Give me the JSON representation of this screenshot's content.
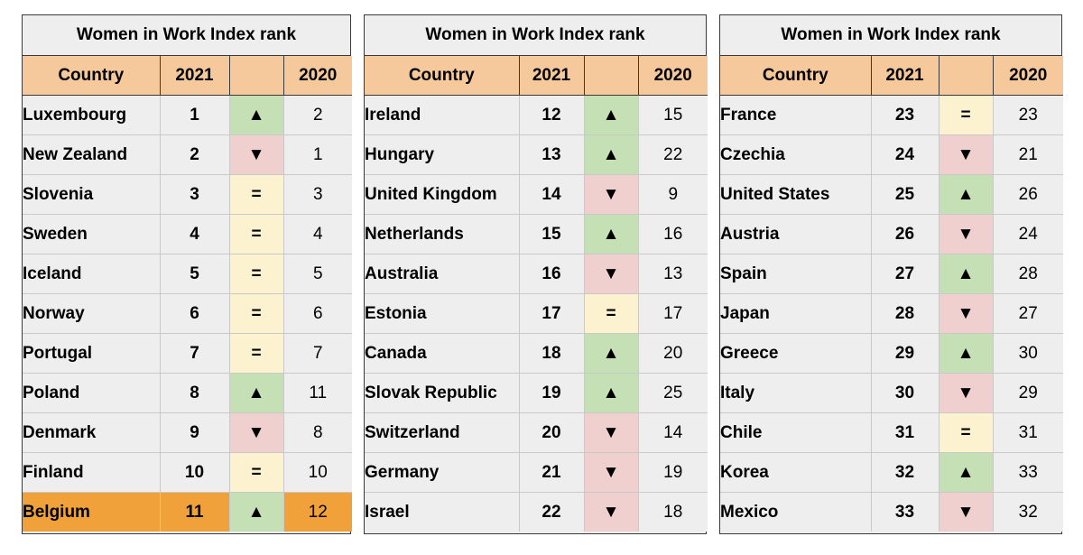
{
  "colors": {
    "header_bg": "#f6c99c",
    "up": "#c5e0b4",
    "down": "#f0cfcf",
    "same": "#fdf2d0",
    "highlight": "#f0a13a"
  },
  "symbols": {
    "up": "▲",
    "down": "▼",
    "same": "="
  },
  "chart_data": {
    "type": "table",
    "title": "Women in Work Index rank",
    "columns": [
      "Country",
      "2021",
      "",
      "2020"
    ],
    "highlighted_country": "Belgium",
    "panels": [
      {
        "title": "Women in Work Index rank",
        "headers": {
          "country": "Country",
          "y2021": "2021",
          "change": "",
          "y2020": "2020"
        },
        "rows": [
          {
            "country": "Luxembourg",
            "y2021": "1",
            "y2020": "2",
            "change": "up"
          },
          {
            "country": "New Zealand",
            "y2021": "2",
            "y2020": "1",
            "change": "down"
          },
          {
            "country": "Slovenia",
            "y2021": "3",
            "y2020": "3",
            "change": "same"
          },
          {
            "country": "Sweden",
            "y2021": "4",
            "y2020": "4",
            "change": "same"
          },
          {
            "country": "Iceland",
            "y2021": "5",
            "y2020": "5",
            "change": "same"
          },
          {
            "country": "Norway",
            "y2021": "6",
            "y2020": "6",
            "change": "same"
          },
          {
            "country": "Portugal",
            "y2021": "7",
            "y2020": "7",
            "change": "same"
          },
          {
            "country": "Poland",
            "y2021": "8",
            "y2020": "11",
            "change": "up"
          },
          {
            "country": "Denmark",
            "y2021": "9",
            "y2020": "8",
            "change": "down"
          },
          {
            "country": "Finland",
            "y2021": "10",
            "y2020": "10",
            "change": "same"
          },
          {
            "country": "Belgium",
            "y2021": "11",
            "y2020": "12",
            "change": "up",
            "highlight": true
          }
        ]
      },
      {
        "title": "Women in Work Index rank",
        "headers": {
          "country": "Country",
          "y2021": "2021",
          "change": "",
          "y2020": "2020"
        },
        "rows": [
          {
            "country": "Ireland",
            "y2021": "12",
            "y2020": "15",
            "change": "up"
          },
          {
            "country": "Hungary",
            "y2021": "13",
            "y2020": "22",
            "change": "up"
          },
          {
            "country": "United Kingdom",
            "y2021": "14",
            "y2020": "9",
            "change": "down"
          },
          {
            "country": "Netherlands",
            "y2021": "15",
            "y2020": "16",
            "change": "up"
          },
          {
            "country": "Australia",
            "y2021": "16",
            "y2020": "13",
            "change": "down"
          },
          {
            "country": "Estonia",
            "y2021": "17",
            "y2020": "17",
            "change": "same"
          },
          {
            "country": "Canada",
            "y2021": "18",
            "y2020": "20",
            "change": "up"
          },
          {
            "country": "Slovak Republic",
            "y2021": "19",
            "y2020": "25",
            "change": "up"
          },
          {
            "country": "Switzerland",
            "y2021": "20",
            "y2020": "14",
            "change": "down"
          },
          {
            "country": "Germany",
            "y2021": "21",
            "y2020": "19",
            "change": "down"
          },
          {
            "country": "Israel",
            "y2021": "22",
            "y2020": "18",
            "change": "down"
          }
        ]
      },
      {
        "title": "Women in Work Index rank",
        "headers": {
          "country": "Country",
          "y2021": "2021",
          "change": "",
          "y2020": "2020"
        },
        "rows": [
          {
            "country": "France",
            "y2021": "23",
            "y2020": "23",
            "change": "same"
          },
          {
            "country": "Czechia",
            "y2021": "24",
            "y2020": "21",
            "change": "down"
          },
          {
            "country": "United States",
            "y2021": "25",
            "y2020": "26",
            "change": "up"
          },
          {
            "country": "Austria",
            "y2021": "26",
            "y2020": "24",
            "change": "down"
          },
          {
            "country": "Spain",
            "y2021": "27",
            "y2020": "28",
            "change": "up"
          },
          {
            "country": "Japan",
            "y2021": "28",
            "y2020": "27",
            "change": "down"
          },
          {
            "country": "Greece",
            "y2021": "29",
            "y2020": "30",
            "change": "up"
          },
          {
            "country": "Italy",
            "y2021": "30",
            "y2020": "29",
            "change": "down"
          },
          {
            "country": "Chile",
            "y2021": "31",
            "y2020": "31",
            "change": "same"
          },
          {
            "country": "Korea",
            "y2021": "32",
            "y2020": "33",
            "change": "up"
          },
          {
            "country": "Mexico",
            "y2021": "33",
            "y2020": "32",
            "change": "down"
          }
        ]
      }
    ]
  }
}
